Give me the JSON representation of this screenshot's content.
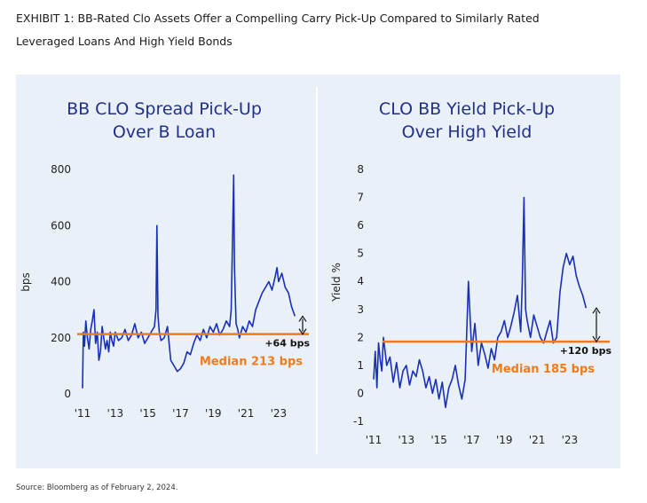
{
  "title_line1": "EXHIBIT 1: BB-Rated Clo Assets Offer a Compelling Carry Pick-Up Compared to Similarly Rated",
  "title_line2": "Leveraged Loans And High Yield Bonds",
  "source": "Source: Bloomberg as of February 2, 2024.",
  "colors": {
    "series": "#1a2fb8",
    "median": "#f07b1a",
    "panel_bg": "#e9f0f7",
    "title": "#22308a"
  },
  "chart_data": [
    {
      "type": "line",
      "title_lines": [
        "BB CLO Spread Pick-Up",
        "Over B Loan"
      ],
      "xlabel": "",
      "ylabel": "bps",
      "ylim": [
        0,
        800
      ],
      "yticks": [
        "0",
        "200",
        "400",
        "600",
        "800"
      ],
      "xlim": [
        2011,
        2024.2
      ],
      "xticks": [
        "'11",
        "'13",
        "'15",
        "'17",
        "'19",
        "'21",
        "'23"
      ],
      "xtick_values": [
        2011,
        2013,
        2015,
        2017,
        2019,
        2021,
        2023
      ],
      "median_value": 213,
      "median_label": "Median 213 bps",
      "pickup_label": "+64 bps",
      "current_value": 277,
      "x": [
        2011.0,
        2011.05,
        2011.12,
        2011.2,
        2011.3,
        2011.4,
        2011.5,
        2011.6,
        2011.7,
        2011.8,
        2011.9,
        2012.0,
        2012.1,
        2012.2,
        2012.3,
        2012.4,
        2012.5,
        2012.6,
        2012.7,
        2012.8,
        2012.9,
        2013.0,
        2013.2,
        2013.4,
        2013.6,
        2013.8,
        2014.0,
        2014.2,
        2014.4,
        2014.6,
        2014.8,
        2015.0,
        2015.2,
        2015.4,
        2015.5,
        2015.55,
        2015.62,
        2015.7,
        2015.8,
        2016.0,
        2016.2,
        2016.4,
        2016.6,
        2016.8,
        2017.0,
        2017.2,
        2017.4,
        2017.6,
        2017.8,
        2018.0,
        2018.2,
        2018.4,
        2018.6,
        2018.8,
        2019.0,
        2019.2,
        2019.4,
        2019.6,
        2019.8,
        2020.0,
        2020.1,
        2020.2,
        2020.25,
        2020.3,
        2020.4,
        2020.5,
        2020.6,
        2020.8,
        2021.0,
        2021.2,
        2021.4,
        2021.6,
        2021.8,
        2022.0,
        2022.2,
        2022.4,
        2022.6,
        2022.8,
        2022.9,
        2023.0,
        2023.2,
        2023.4,
        2023.6,
        2023.8,
        2024.0
      ],
      "y": [
        20,
        220,
        170,
        260,
        200,
        160,
        230,
        260,
        300,
        180,
        220,
        120,
        150,
        240,
        200,
        160,
        190,
        150,
        220,
        190,
        170,
        220,
        190,
        200,
        230,
        190,
        210,
        250,
        200,
        220,
        180,
        200,
        220,
        240,
        300,
        600,
        280,
        220,
        190,
        200,
        240,
        120,
        100,
        80,
        90,
        110,
        150,
        140,
        180,
        210,
        190,
        230,
        200,
        240,
        220,
        250,
        210,
        230,
        260,
        240,
        300,
        620,
        780,
        450,
        250,
        230,
        200,
        240,
        220,
        260,
        240,
        300,
        330,
        360,
        380,
        400,
        370,
        420,
        450,
        400,
        430,
        380,
        360,
        310,
        277
      ]
    },
    {
      "type": "line",
      "title_lines": [
        "CLO BB Yield Pick-Up",
        "Over High Yield"
      ],
      "xlabel": "",
      "ylabel": "Yield %",
      "ylim": [
        -1,
        8
      ],
      "yticks": [
        "-1",
        "0",
        "1",
        "2",
        "3",
        "4",
        "5",
        "6",
        "7",
        "8"
      ],
      "xlim": [
        2011,
        2024.2
      ],
      "xticks": [
        "'11",
        "'13",
        "'15",
        "'17",
        "'19",
        "'21",
        "'23"
      ],
      "xtick_values": [
        2011,
        2013,
        2015,
        2017,
        2019,
        2021,
        2023
      ],
      "median_value": 1.85,
      "median_label": "Median 185 bps",
      "pickup_label": "+120 bps",
      "current_value": 3.05,
      "x": [
        2011.0,
        2011.1,
        2011.2,
        2011.3,
        2011.4,
        2011.5,
        2011.6,
        2011.7,
        2011.8,
        2012.0,
        2012.2,
        2012.4,
        2012.6,
        2012.8,
        2013.0,
        2013.2,
        2013.4,
        2013.6,
        2013.8,
        2014.0,
        2014.2,
        2014.4,
        2014.6,
        2014.8,
        2015.0,
        2015.2,
        2015.4,
        2015.6,
        2015.8,
        2016.0,
        2016.2,
        2016.4,
        2016.6,
        2016.8,
        2017.0,
        2017.2,
        2017.4,
        2017.6,
        2017.8,
        2018.0,
        2018.2,
        2018.4,
        2018.6,
        2018.8,
        2019.0,
        2019.2,
        2019.4,
        2019.6,
        2019.8,
        2020.0,
        2020.1,
        2020.2,
        2020.3,
        2020.4,
        2020.6,
        2020.8,
        2021.0,
        2021.2,
        2021.4,
        2021.6,
        2021.8,
        2022.0,
        2022.2,
        2022.4,
        2022.6,
        2022.8,
        2023.0,
        2023.2,
        2023.4,
        2023.6,
        2023.8,
        2024.0
      ],
      "y": [
        0.5,
        1.5,
        0.2,
        1.8,
        1.2,
        0.8,
        2.0,
        1.5,
        1.0,
        1.3,
        0.4,
        1.1,
        0.2,
        0.8,
        1.0,
        0.3,
        0.8,
        0.6,
        1.2,
        0.8,
        0.2,
        0.6,
        0.0,
        0.5,
        -0.2,
        0.4,
        -0.5,
        0.2,
        0.5,
        1.0,
        0.3,
        -0.2,
        0.5,
        4.0,
        1.5,
        2.5,
        1.0,
        1.8,
        1.4,
        0.9,
        1.6,
        1.2,
        2.0,
        2.2,
        2.6,
        2.0,
        2.4,
        2.9,
        3.5,
        2.2,
        4.0,
        7.0,
        3.0,
        2.6,
        2.0,
        2.8,
        2.4,
        2.0,
        1.8,
        2.2,
        2.6,
        1.8,
        2.0,
        3.6,
        4.5,
        5.0,
        4.6,
        4.9,
        4.2,
        3.8,
        3.5,
        3.05
      ]
    }
  ]
}
